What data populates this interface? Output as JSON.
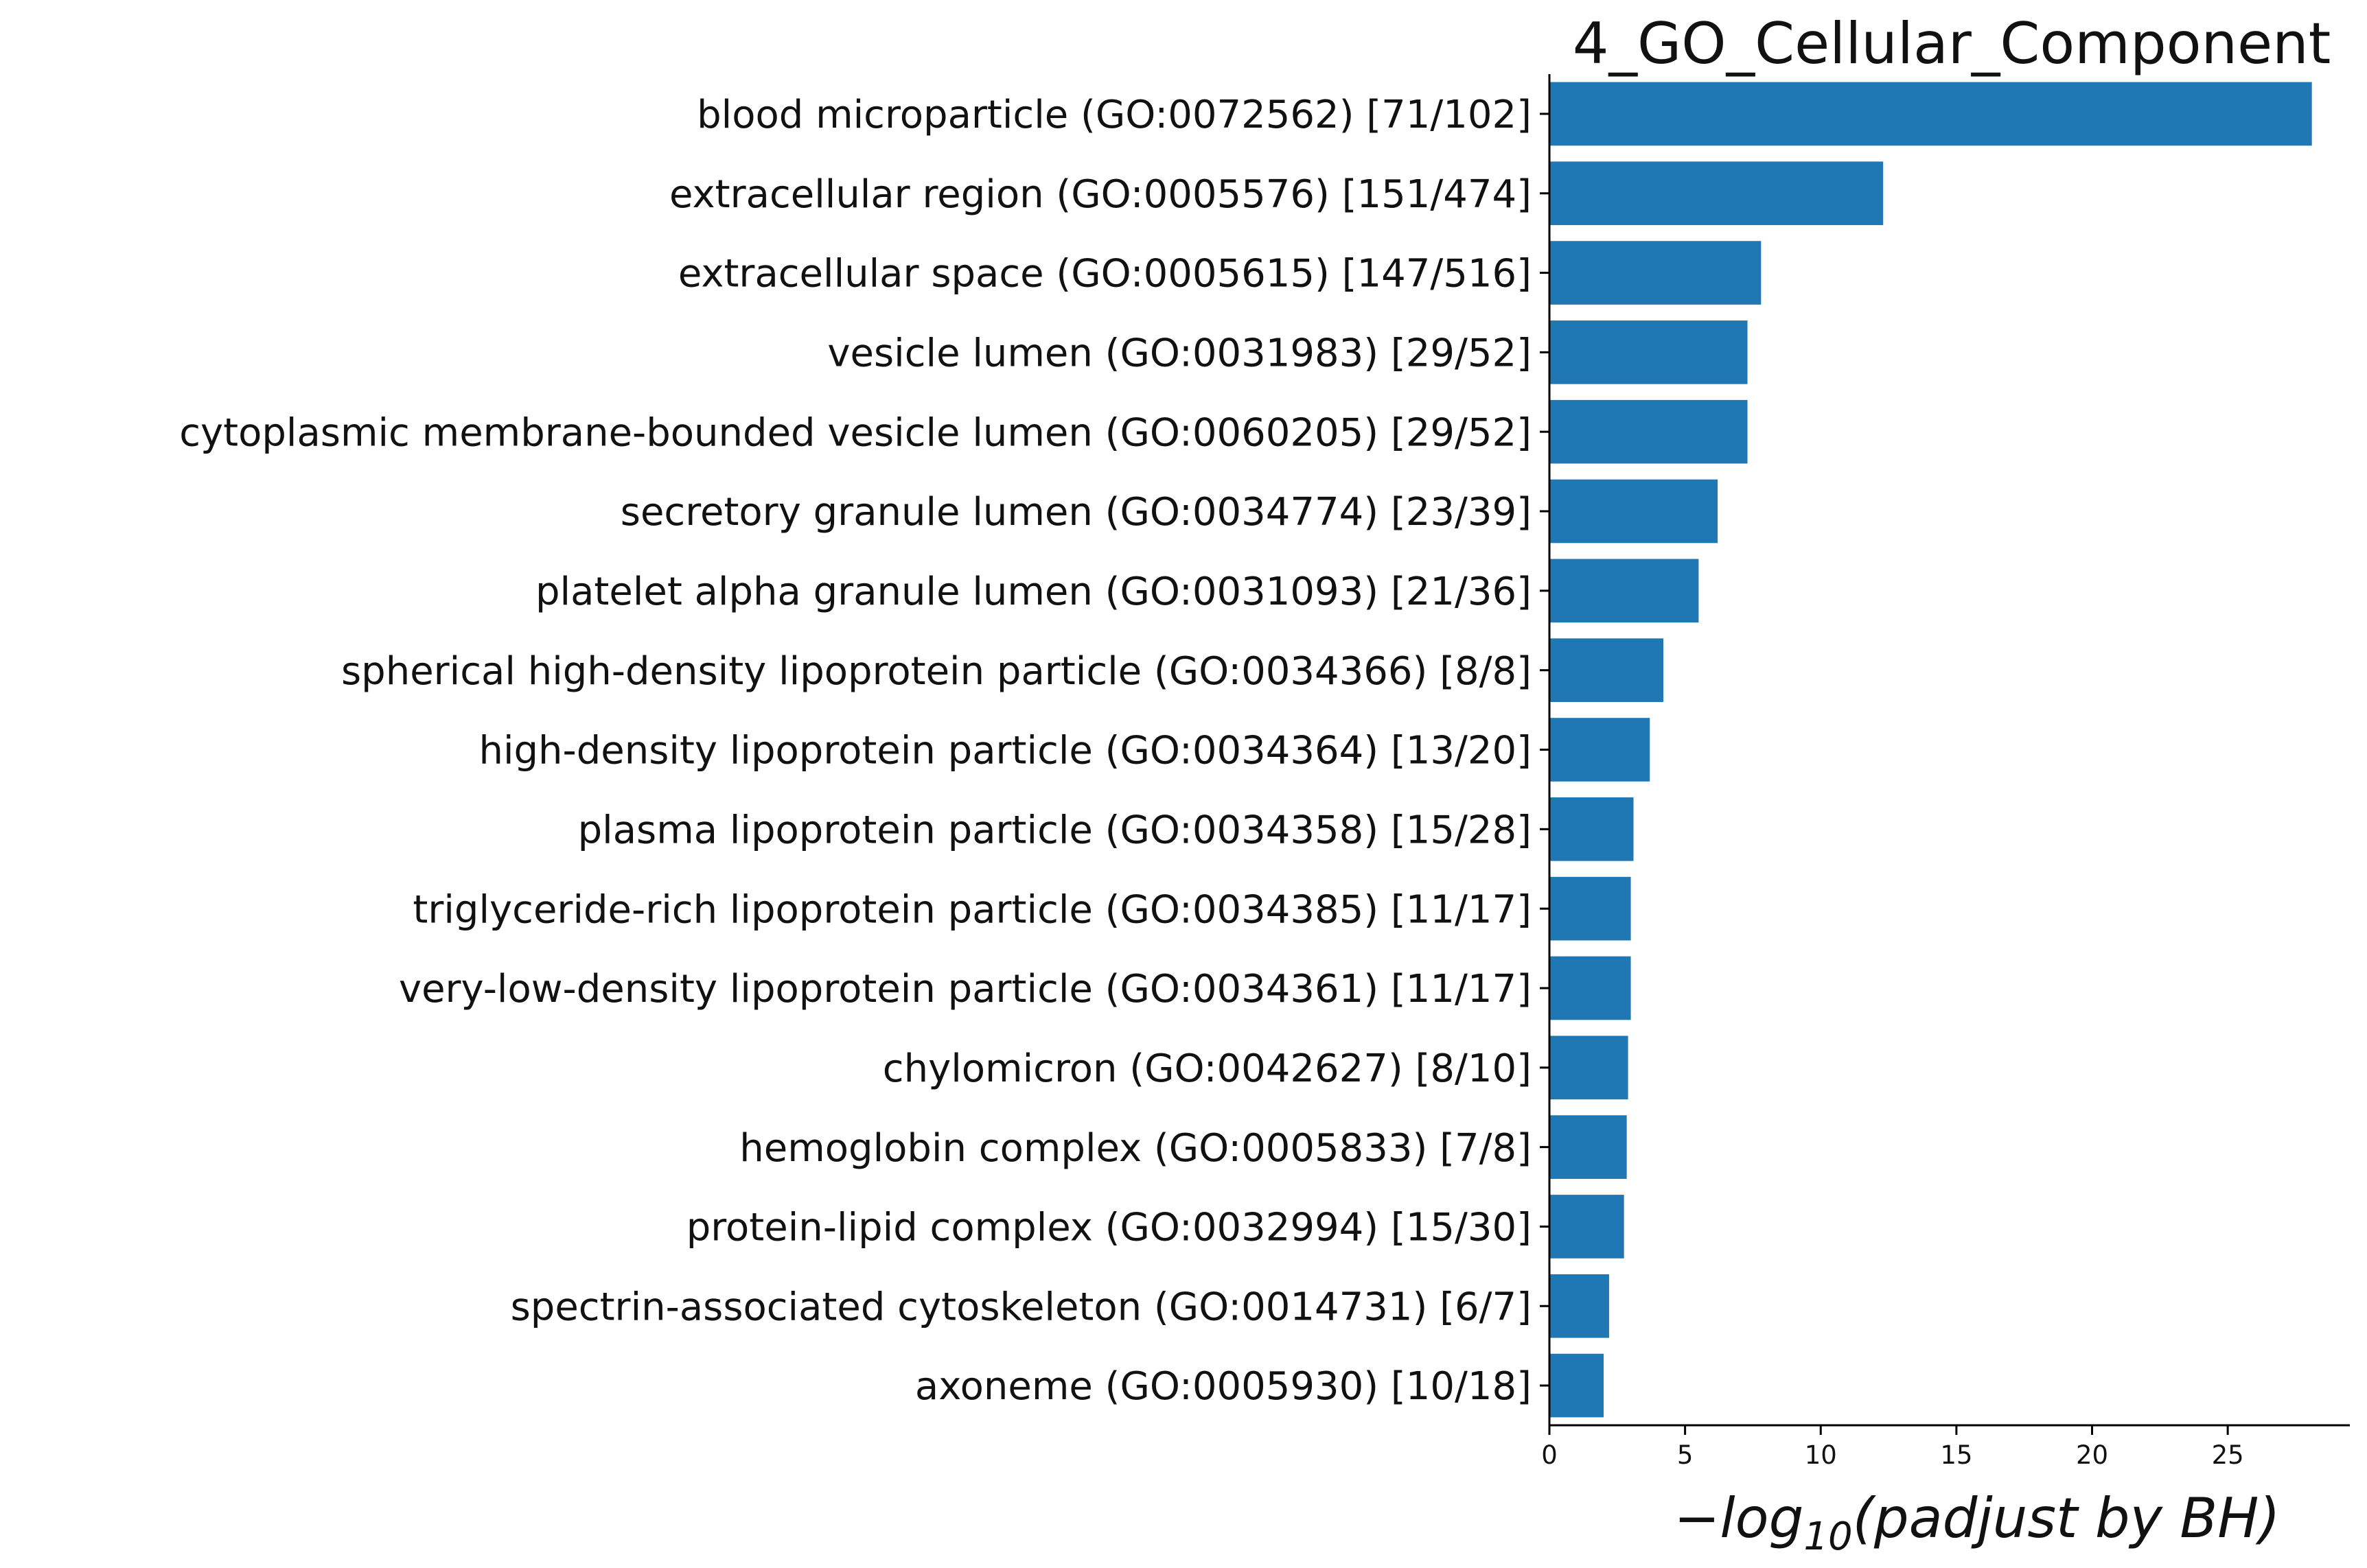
{
  "chart_data": {
    "type": "bar",
    "orientation": "horizontal",
    "title": "4_GO_Cellular_Component",
    "xlabel": {
      "prefix": "−log",
      "subscript": "10",
      "suffix": "(padjust by BH)"
    },
    "ylabel": "",
    "xlim": [
      0,
      29.5
    ],
    "xticks": [
      0,
      5,
      10,
      15,
      20,
      25
    ],
    "bar_color": "#1f77b4",
    "grid": false,
    "legend": "none",
    "categories": [
      "blood microparticle (GO:0072562) [71/102]",
      "extracellular region (GO:0005576) [151/474]",
      "extracellular space (GO:0005615) [147/516]",
      "vesicle lumen (GO:0031983) [29/52]",
      "cytoplasmic membrane-bounded vesicle lumen (GO:0060205) [29/52]",
      "secretory granule lumen (GO:0034774) [23/39]",
      "platelet alpha granule lumen (GO:0031093) [21/36]",
      "spherical high-density lipoprotein particle (GO:0034366) [8/8]",
      "high-density lipoprotein particle (GO:0034364) [13/20]",
      "plasma lipoprotein particle (GO:0034358) [15/28]",
      "triglyceride-rich lipoprotein particle (GO:0034385) [11/17]",
      "very-low-density lipoprotein particle (GO:0034361) [11/17]",
      "chylomicron (GO:0042627) [8/10]",
      "hemoglobin complex (GO:0005833) [7/8]",
      "protein-lipid complex (GO:0032994) [15/30]",
      "spectrin-associated cytoskeleton (GO:0014731) [6/7]",
      "axoneme (GO:0005930) [10/18]"
    ],
    "values": [
      28.1,
      12.3,
      7.8,
      7.3,
      7.3,
      6.2,
      5.5,
      4.2,
      3.7,
      3.1,
      3.0,
      3.0,
      2.9,
      2.85,
      2.75,
      2.2,
      2.0
    ]
  }
}
